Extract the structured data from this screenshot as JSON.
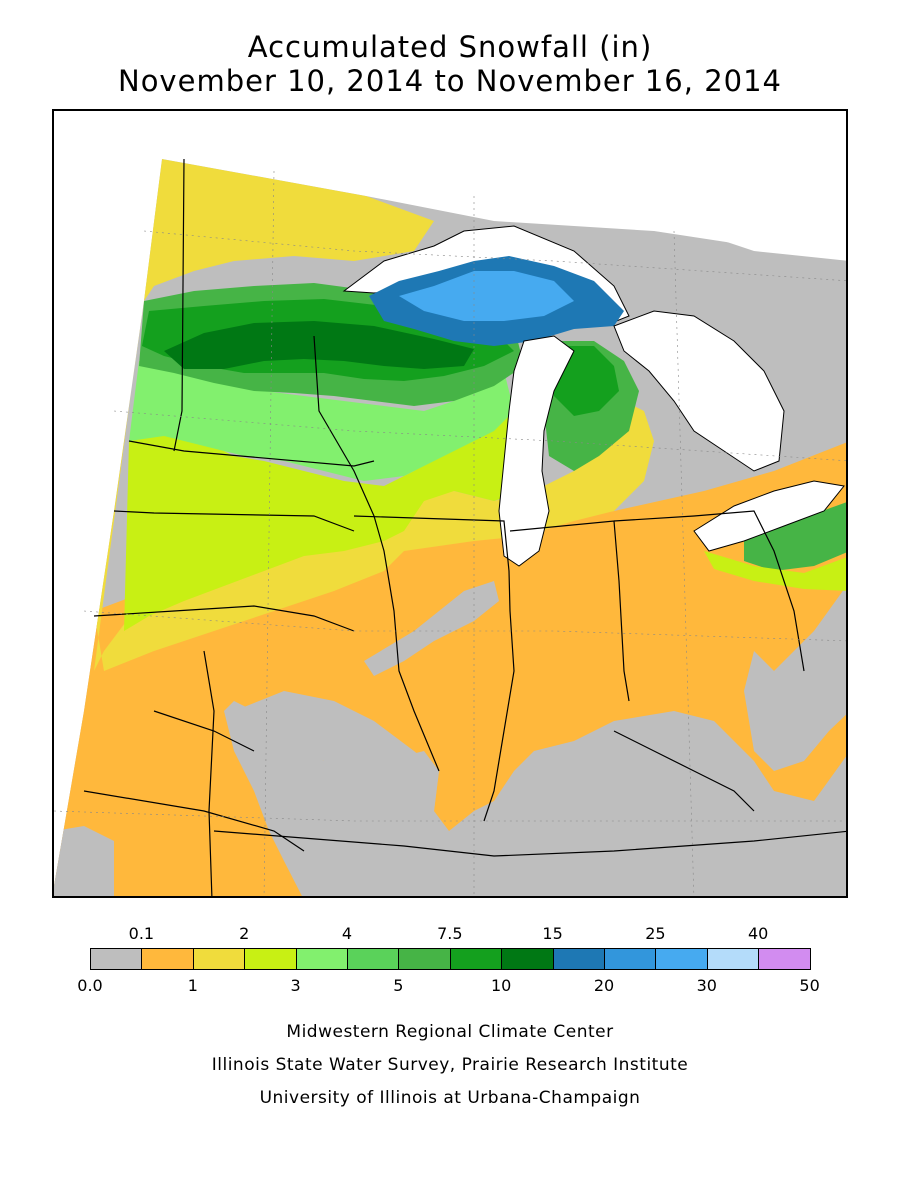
{
  "title": {
    "line1": "Accumulated Snowfall (in)",
    "line2": "November 10, 2014 to November 16, 2014"
  },
  "legend": {
    "bins": [
      {
        "low": "0.0",
        "color": "#bebebe"
      },
      {
        "low": "0.1",
        "color": "#ffb83c"
      },
      {
        "low": "1",
        "color": "#f0dc3c"
      },
      {
        "low": "2",
        "color": "#c8f014"
      },
      {
        "low": "3",
        "color": "#82f06e"
      },
      {
        "low": "4",
        "color": "#5ad25a"
      },
      {
        "low": "5",
        "color": "#46b446"
      },
      {
        "low": "7.5",
        "color": "#14a01e"
      },
      {
        "low": "10",
        "color": "#007814"
      },
      {
        "low": "15",
        "color": "#1e78b4"
      },
      {
        "low": "20",
        "color": "#3296dc"
      },
      {
        "low": "25",
        "color": "#46aaf0"
      },
      {
        "low": "30",
        "color": "#b4dcfa"
      },
      {
        "low": "40",
        "color": "#d28cf0"
      }
    ],
    "top_labels": [
      "0.1",
      "2",
      "4",
      "7.5",
      "15",
      "25",
      "40"
    ],
    "bottom_labels": [
      "0.0",
      "1",
      "3",
      "5",
      "10",
      "20",
      "30",
      "50"
    ]
  },
  "credits": {
    "line1": "Midwestern Regional Climate Center",
    "line2": "Illinois State Water Survey, Prairie Research Institute",
    "line3": "University of Illinois at Urbana-Champaign"
  },
  "colors": {
    "gray": "#bebebe",
    "orange": "#ffb83c",
    "yellow": "#f0dc3c",
    "lime": "#c8f014",
    "lightgreen": "#82f06e",
    "green4": "#5ad25a",
    "green5": "#46b446",
    "green7": "#14a01e",
    "green10": "#007814",
    "blue15": "#1e78b4",
    "blue20": "#3296dc",
    "blue25": "#46aaf0",
    "water": "#ffffff",
    "border": "#000000"
  }
}
